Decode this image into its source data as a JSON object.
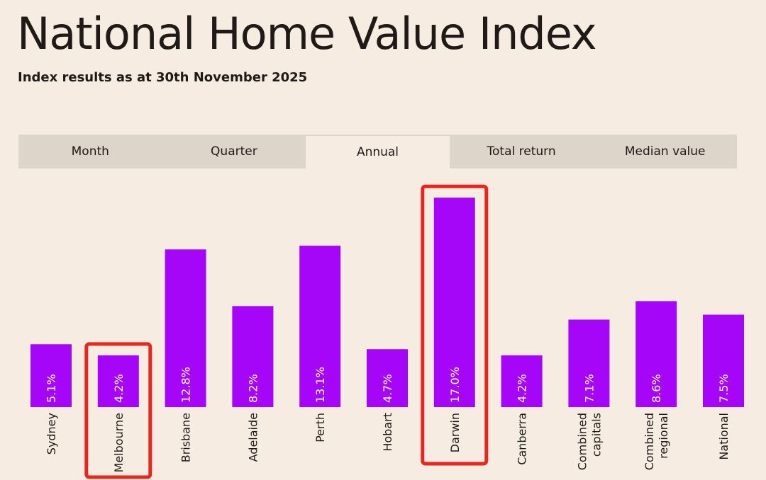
{
  "header": {
    "title": "National Home Value Index",
    "subtitle": "Index results as at 30th November 2025"
  },
  "tabs": [
    {
      "label": "Month",
      "active": false
    },
    {
      "label": "Quarter",
      "active": false
    },
    {
      "label": "Annual",
      "active": true
    },
    {
      "label": "Total return",
      "active": false
    },
    {
      "label": "Median value",
      "active": false
    }
  ],
  "colors": {
    "bar": "#a506f7",
    "highlight": "#e8261e",
    "background": "#f7ece1",
    "tab_bar": "#ddd4ca"
  },
  "highlighted_categories": [
    "Melbourne",
    "Darwin"
  ],
  "chart_data": {
    "type": "bar",
    "categories": [
      [
        "Sydney"
      ],
      [
        "Melbourne"
      ],
      [
        "Brisbane"
      ],
      [
        "Adelaide"
      ],
      [
        "Perth"
      ],
      [
        "Hobart"
      ],
      [
        "Darwin"
      ],
      [
        "Canberra"
      ],
      [
        "Combined",
        "capitals"
      ],
      [
        "Combined",
        "regional"
      ],
      [
        "National"
      ]
    ],
    "values": [
      5.1,
      4.2,
      12.8,
      8.2,
      13.1,
      4.7,
      17.0,
      4.2,
      7.1,
      8.6,
      7.5
    ],
    "value_labels": [
      "5.1%",
      "4.2%",
      "12.8%",
      "8.2%",
      "13.1%",
      "4.7%",
      "17.0%",
      "4.2%",
      "7.1%",
      "8.6%",
      "7.5%"
    ],
    "unit": "%"
  }
}
